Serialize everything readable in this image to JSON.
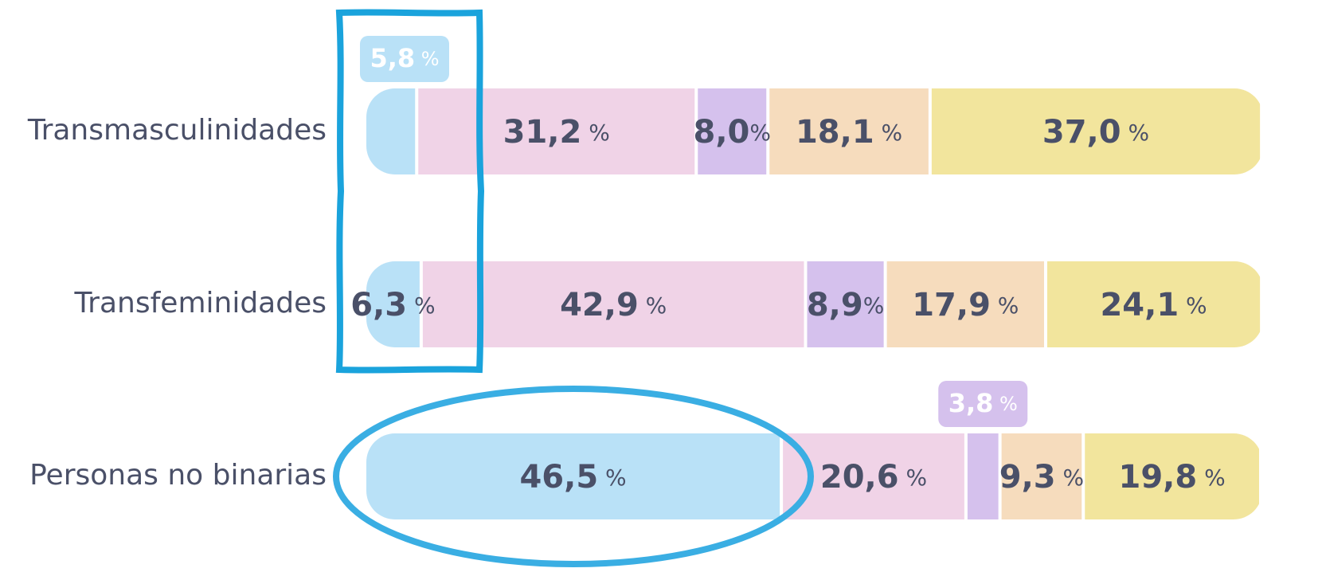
{
  "chart_data": {
    "type": "stacked-bar-100",
    "categories": [
      "Transmasculinidades",
      "Transfeminidades",
      "Personas no binarias"
    ],
    "series": [
      {
        "color": "#b9e1f7",
        "values": [
          5.8,
          6.3,
          46.5
        ],
        "value_labels": [
          "5,8 %",
          "6,3 %",
          "46,5 %"
        ]
      },
      {
        "color": "#f0d3e7",
        "values": [
          31.2,
          42.9,
          20.6
        ],
        "value_labels": [
          "31,2 %",
          "42,9 %",
          "20,6 %"
        ]
      },
      {
        "color": "#d5c1ed",
        "values": [
          8.0,
          8.9,
          3.8
        ],
        "value_labels": [
          "8,0%",
          "8,9%",
          "3,8 %"
        ]
      },
      {
        "color": "#f6dcbd",
        "values": [
          18.1,
          17.9,
          9.3
        ],
        "value_labels": [
          "18,1 %",
          "17,9 %",
          "9,3 %"
        ]
      },
      {
        "color": "#f2e59d",
        "values": [
          37.0,
          24.1,
          19.8
        ],
        "value_labels": [
          "37,0 %",
          "24,1 %",
          "19,8 %"
        ]
      }
    ]
  }
}
